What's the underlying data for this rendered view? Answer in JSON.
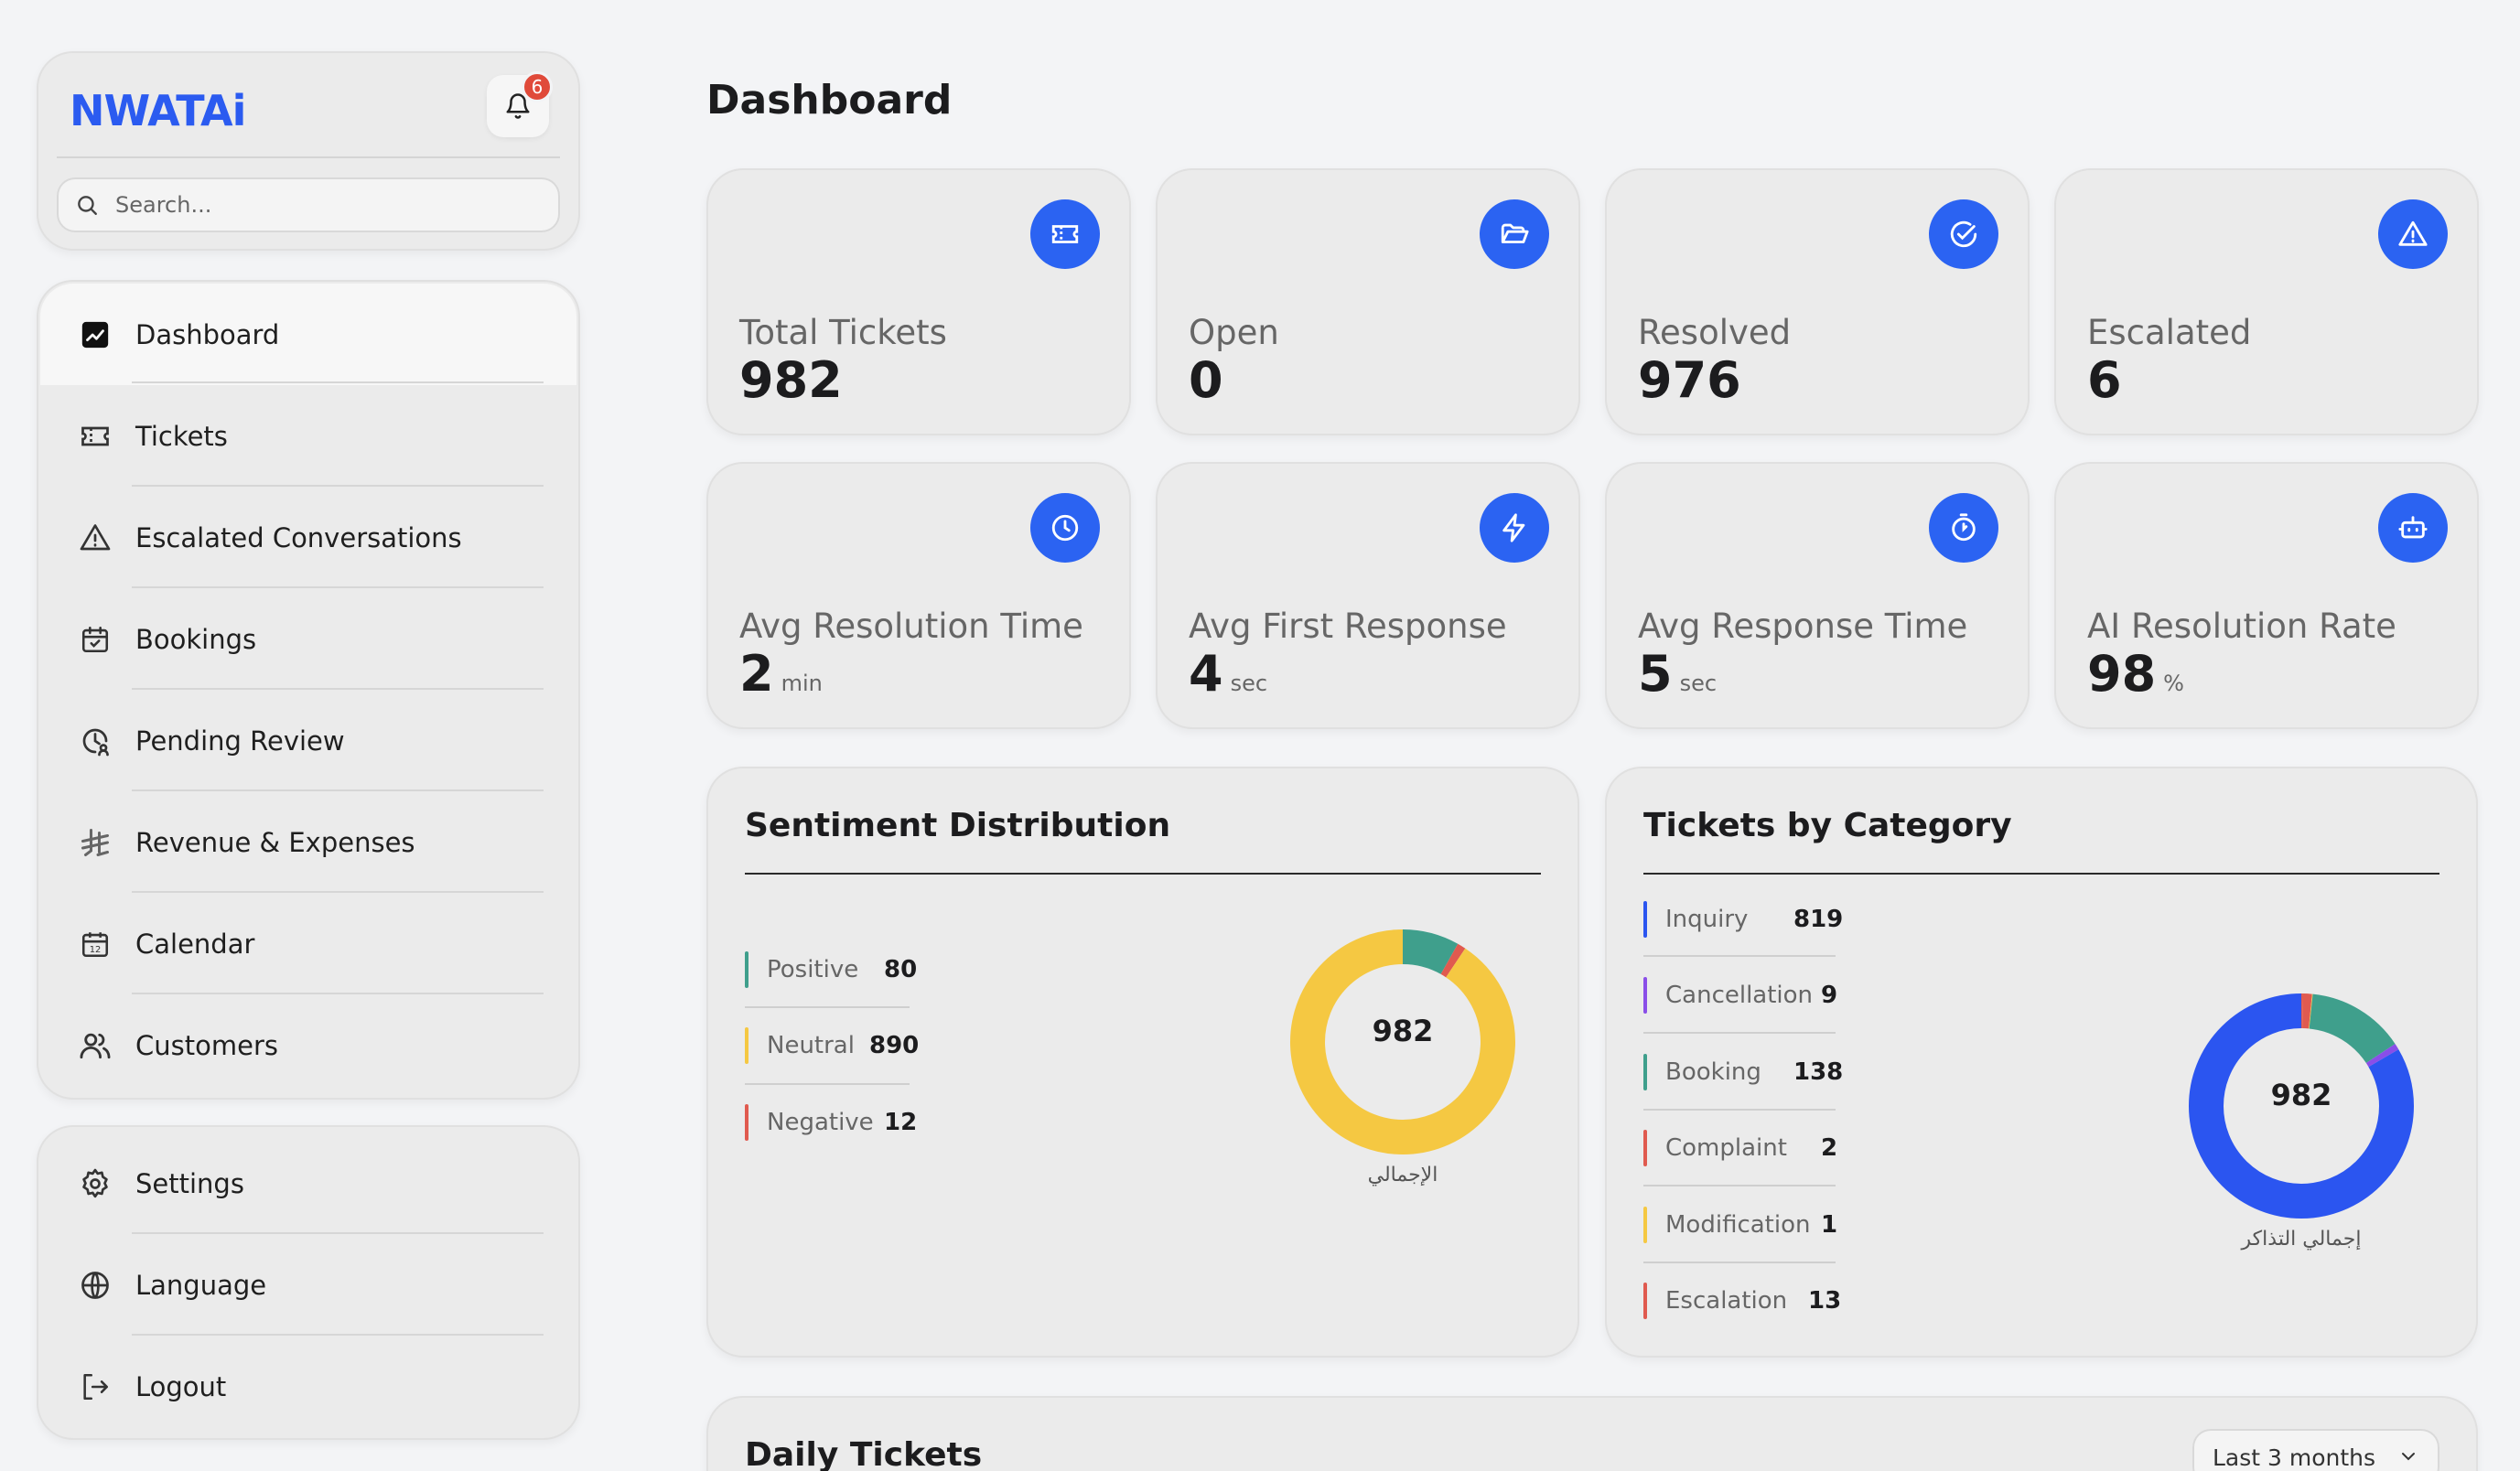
{
  "brand": {
    "logo_text": "NWATAi",
    "notification_count": "6"
  },
  "search": {
    "placeholder": "Search..."
  },
  "nav": {
    "items": [
      {
        "label": "Dashboard",
        "icon": "chart-icon"
      },
      {
        "label": "Tickets",
        "icon": "ticket-icon"
      },
      {
        "label": "Escalated Conversations",
        "icon": "warning-icon"
      },
      {
        "label": "Bookings",
        "icon": "calendar-check-icon"
      },
      {
        "label": "Pending Review",
        "icon": "clock-user-icon"
      },
      {
        "label": "Revenue & Expenses",
        "icon": "riyal-icon"
      },
      {
        "label": "Calendar",
        "icon": "calendar-icon"
      },
      {
        "label": "Customers",
        "icon": "users-icon"
      }
    ],
    "bottom": [
      {
        "label": "Settings",
        "icon": "gear-icon"
      },
      {
        "label": "Language",
        "icon": "globe-icon"
      },
      {
        "label": "Logout",
        "icon": "logout-icon"
      }
    ]
  },
  "page": {
    "title": "Dashboard"
  },
  "stats": [
    {
      "label": "Total Tickets",
      "value": "982",
      "unit": ""
    },
    {
      "label": "Open",
      "value": "0",
      "unit": ""
    },
    {
      "label": "Resolved",
      "value": "976",
      "unit": ""
    },
    {
      "label": "Escalated",
      "value": "6",
      "unit": ""
    },
    {
      "label": "Avg Resolution Time",
      "value": "2",
      "unit": "min"
    },
    {
      "label": "Avg First Response",
      "value": "4",
      "unit": "sec"
    },
    {
      "label": "Avg Response Time",
      "value": "5",
      "unit": "sec"
    },
    {
      "label": "AI Resolution Rate",
      "value": "98",
      "unit": "%"
    }
  ],
  "sentiment": {
    "title": "Sentiment Distribution",
    "total": "982",
    "caption": "الإجمالي",
    "items": [
      {
        "name": "Positive",
        "value": 80,
        "color": "#3f9f8c"
      },
      {
        "name": "Neutral",
        "value": 890,
        "color": "#f5c842"
      },
      {
        "name": "Negative",
        "value": 12,
        "color": "#e05a4f"
      }
    ]
  },
  "categories": {
    "title": "Tickets by Category",
    "total": "982",
    "caption": "إجمالي التذاكر",
    "items": [
      {
        "name": "Inquiry",
        "value": 819,
        "color": "#2b55f0"
      },
      {
        "name": "Cancellation",
        "value": 9,
        "color": "#8a4ee8"
      },
      {
        "name": "Booking",
        "value": 138,
        "color": "#3f9f8c"
      },
      {
        "name": "Complaint",
        "value": 2,
        "color": "#e05a4f"
      },
      {
        "name": "Modification",
        "value": 1,
        "color": "#f5c842"
      },
      {
        "name": "Escalation",
        "value": 13,
        "color": "#e05a4f"
      }
    ]
  },
  "daily": {
    "title": "Daily Tickets",
    "range": "Last 3 months"
  },
  "colors": {
    "accent": "#2b63f2",
    "brand": "#2b5bf0",
    "badge": "#e04a3a"
  }
}
